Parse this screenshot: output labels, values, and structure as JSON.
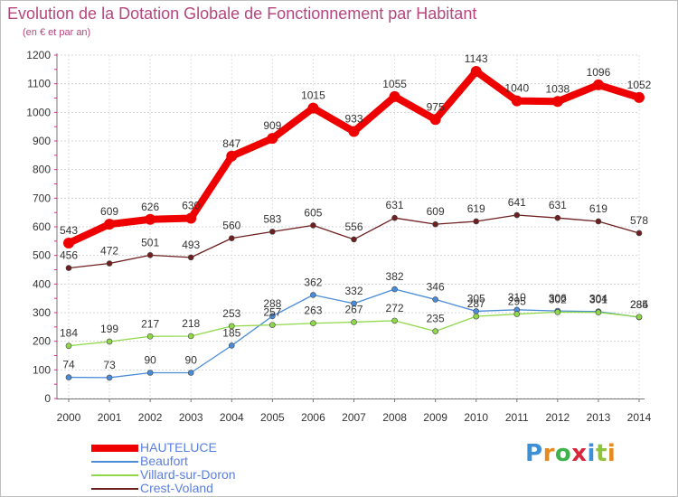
{
  "title": "Evolution de la Dotation Globale de Fonctionnement par Habitant",
  "subtitle": "(en € et par an)",
  "brand": {
    "letters": [
      "P",
      "r",
      "o",
      "x",
      "i",
      "t",
      "i"
    ],
    "colors": [
      "#3d8fd6",
      "#e58a20",
      "#3db34a",
      "#d9263a",
      "#3d8fd6",
      "#8fc23d",
      "#e58a20"
    ]
  },
  "chart_data": {
    "type": "line",
    "x": [
      "2000",
      "2001",
      "2002",
      "2003",
      "2004",
      "2005",
      "2006",
      "2007",
      "2008",
      "2009",
      "2010",
      "2011",
      "2012",
      "2013",
      "2014"
    ],
    "ylim": [
      0,
      1200
    ],
    "yticks": [
      "0",
      "100",
      "200",
      "300",
      "400",
      "500",
      "600",
      "700",
      "800",
      "900",
      "1000",
      "1100",
      "1200"
    ],
    "grid": true,
    "legend_position": "bottom-left",
    "series": [
      {
        "name": "HAUTELUCE",
        "color": "#ee0000",
        "emphasis": true,
        "values": [
          543,
          609,
          626,
          630,
          847,
          909,
          1015,
          933,
          1055,
          975,
          1143,
          1040,
          1038,
          1096,
          1052
        ]
      },
      {
        "name": "Beaufort",
        "color": "#4a8cd8",
        "emphasis": false,
        "values": [
          74,
          73,
          90,
          90,
          185,
          288,
          362,
          332,
          382,
          346,
          305,
          310,
          306,
          304,
          284
        ]
      },
      {
        "name": "Villard-sur-Doron",
        "color": "#8fd84a",
        "emphasis": false,
        "values": [
          184,
          199,
          217,
          218,
          253,
          257,
          263,
          267,
          272,
          235,
          287,
          295,
          302,
          301,
          285
        ]
      },
      {
        "name": "Crest-Voland",
        "color": "#6e1f1f",
        "emphasis": false,
        "values": [
          456,
          472,
          501,
          493,
          560,
          583,
          605,
          556,
          631,
          609,
          619,
          641,
          631,
          619,
          578
        ]
      }
    ]
  }
}
